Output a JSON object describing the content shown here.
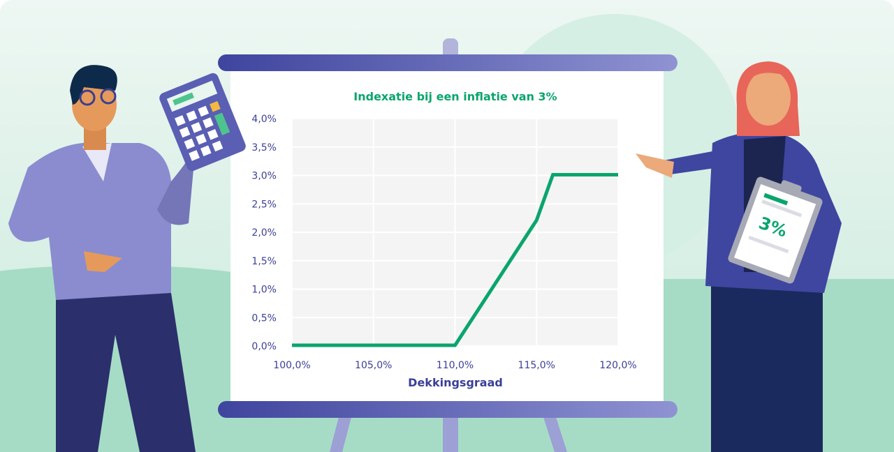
{
  "colors": {
    "line": "#0aa56d",
    "axis_text": "#3b3f96",
    "plot_background": "#f4f4f4",
    "board_bar_start": "#3f449e",
    "board_bar_end": "#8f93d2"
  },
  "illustration": {
    "clipboard_text": "3%"
  },
  "chart_data": {
    "type": "line",
    "title": "Indexatie bij een inflatie van 3%",
    "xlabel": "Dekkingsgraad",
    "ylabel": "",
    "xlim": [
      100,
      120
    ],
    "ylim": [
      0,
      4
    ],
    "grid": true,
    "x_ticks": [
      100,
      105,
      110,
      115,
      120
    ],
    "x_tick_labels": [
      "100,0%",
      "105,0%",
      "110,0%",
      "115,0%",
      "120,0%"
    ],
    "y_ticks": [
      0,
      0.5,
      1,
      1.5,
      2,
      2.5,
      3,
      3.5,
      4
    ],
    "y_tick_labels": [
      "0,0%",
      "0,5%",
      "1,0%",
      "1,5%",
      "2,0%",
      "2,5%",
      "3,0%",
      "3,5%",
      "4,0%"
    ],
    "series": [
      {
        "x": [
          100,
          110,
          115,
          116,
          120
        ],
        "y": [
          0,
          0,
          2.2,
          3,
          3
        ]
      }
    ]
  }
}
